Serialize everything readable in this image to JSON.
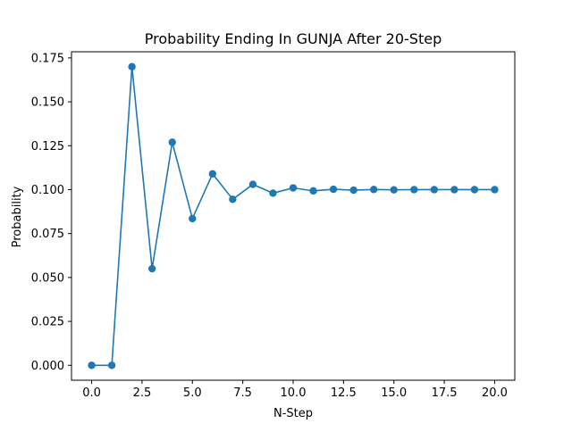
{
  "chart_data": {
    "type": "line",
    "title": "Probability Ending In  GUNJA After 20-Step",
    "xlabel": "N-Step",
    "ylabel": "Probability",
    "xlim": [
      -1.0,
      21.0
    ],
    "ylim": [
      -0.0085,
      0.1785
    ],
    "xticks": [
      0.0,
      2.5,
      5.0,
      7.5,
      10.0,
      12.5,
      15.0,
      17.5,
      20.0
    ],
    "xtick_labels": [
      "0.0",
      "2.5",
      "5.0",
      "7.5",
      "10.0",
      "12.5",
      "15.0",
      "17.5",
      "20.0"
    ],
    "yticks": [
      0.0,
      0.025,
      0.05,
      0.075,
      0.1,
      0.125,
      0.15,
      0.175
    ],
    "ytick_labels": [
      "0.000",
      "0.025",
      "0.050",
      "0.075",
      "0.100",
      "0.125",
      "0.150",
      "0.175"
    ],
    "grid": false,
    "marker": "circle",
    "color": "#1f77b4",
    "series": [
      {
        "x": [
          0,
          1,
          2,
          3,
          4,
          5,
          6,
          7,
          8,
          9,
          10,
          11,
          12,
          13,
          14,
          15,
          16,
          17,
          18,
          19,
          20
        ],
        "values": [
          0.0,
          0.0,
          0.17,
          0.055,
          0.127,
          0.0835,
          0.109,
          0.0945,
          0.103,
          0.098,
          0.101,
          0.0993,
          0.1002,
          0.0997,
          0.1001,
          0.0999,
          0.1,
          0.1,
          0.1,
          0.1,
          0.1
        ]
      }
    ]
  }
}
